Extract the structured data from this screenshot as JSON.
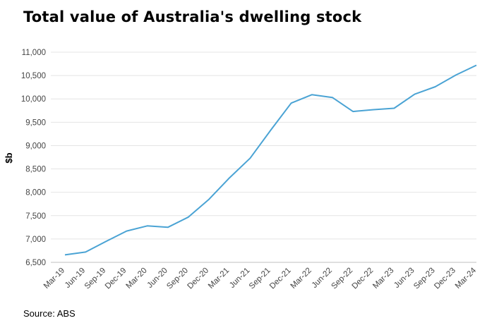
{
  "title": "Total value of Australia's dwelling stock",
  "source": "Source: ABS",
  "chart_data": {
    "type": "line",
    "title": "Total value of Australia's dwelling stock",
    "xlabel": "",
    "ylabel": "$b",
    "ylim": [
      6500,
      11000
    ],
    "yticks": [
      6500,
      7000,
      7500,
      8000,
      8500,
      9000,
      9500,
      10000,
      10500,
      11000
    ],
    "ytick_labels": [
      "6,500",
      "7,000",
      "7,500",
      "8,000",
      "8,500",
      "9,000",
      "9,500",
      "10,000",
      "10,500",
      "11,000"
    ],
    "categories": [
      "Mar-19",
      "Jun-19",
      "Sep-19",
      "Dec-19",
      "Mar-20",
      "Jun-20",
      "Sep-20",
      "Dec-20",
      "Mar-21",
      "Jun-21",
      "Sep-21",
      "Dec-21",
      "Mar-22",
      "Jun-22",
      "Sep-22",
      "Dec-22",
      "Mar-23",
      "Jun-23",
      "Sep-23",
      "Dec-23",
      "Mar-24"
    ],
    "series": [
      {
        "color": "#4aa3d4",
        "values": [
          6660,
          6720,
          6950,
          7170,
          7280,
          7250,
          7470,
          7850,
          8310,
          8730,
          9330,
          9910,
          10090,
          10030,
          9730,
          9770,
          9800,
          10100,
          10260,
          10510,
          10720
        ]
      }
    ],
    "grid": true,
    "legend": "none"
  }
}
